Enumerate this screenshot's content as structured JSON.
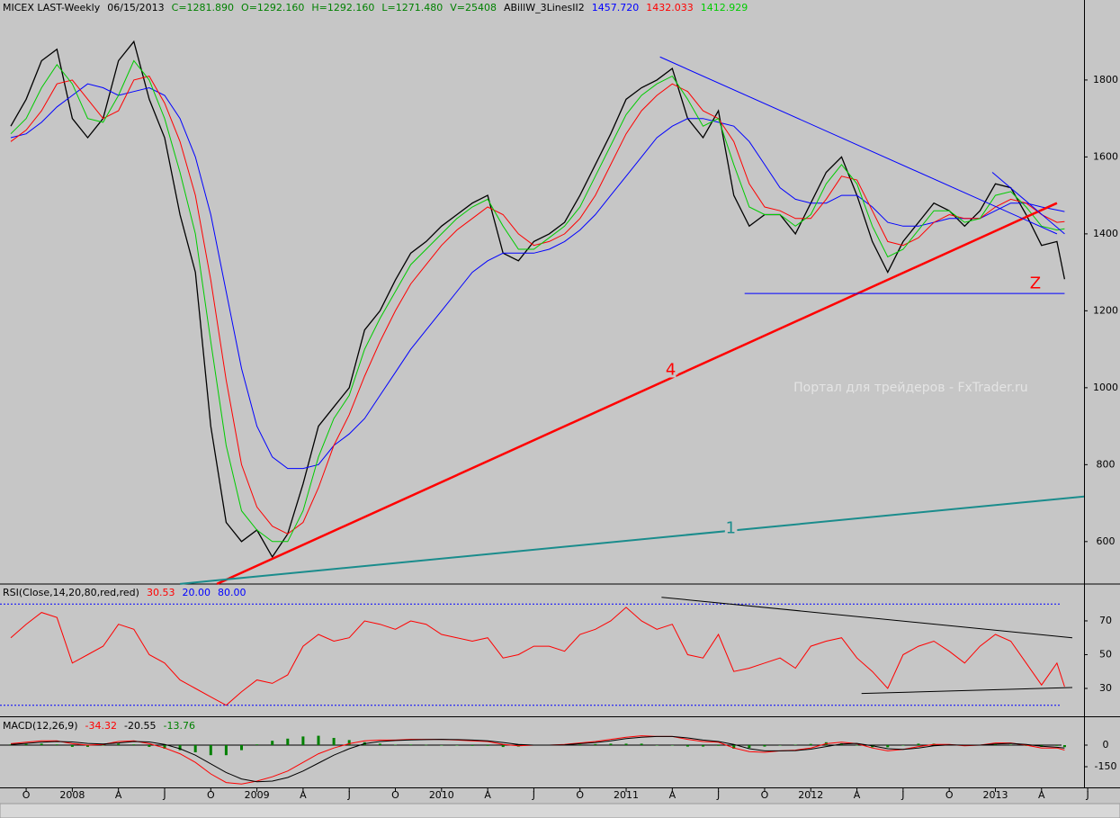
{
  "chart_data": [
    {
      "type": "line",
      "title": "MICEX LAST-Weekly",
      "header": [
        {
          "text": "06/15/2013",
          "color": "#000000"
        },
        {
          "text": "C=1281.890",
          "color": "#008000"
        },
        {
          "text": "O=1292.160",
          "color": "#008000"
        },
        {
          "text": "H=1292.160",
          "color": "#008000"
        },
        {
          "text": "L=1271.480",
          "color": "#008000"
        },
        {
          "text": "V=25408",
          "color": "#008000"
        },
        {
          "text": "ABillW_3LinesII2",
          "color": "#000000"
        },
        {
          "text": "1457.720",
          "color": "#0000ff"
        },
        {
          "text": "1432.033",
          "color": "#ff0000"
        },
        {
          "text": "1412.929",
          "color": "#00cc00"
        }
      ],
      "x": [
        -4,
        -3,
        -2,
        -1,
        0,
        1,
        2,
        3,
        4,
        5,
        6,
        7,
        8,
        9,
        10,
        11,
        12,
        13,
        14,
        15,
        16,
        17,
        18,
        19,
        20,
        21,
        22,
        23,
        24,
        25,
        26,
        27,
        28,
        29,
        30,
        31,
        32,
        33,
        34,
        35,
        36,
        37,
        38,
        39,
        40,
        41,
        42,
        43,
        44,
        45,
        46,
        47,
        48,
        49,
        50,
        51,
        52,
        53,
        54,
        55,
        56,
        57,
        58,
        59,
        60,
        61,
        62,
        63,
        64,
        64.5
      ],
      "series": [
        {
          "color": "#000000",
          "width": 1.3,
          "values": [
            1680,
            1750,
            1850,
            1880,
            1700,
            1650,
            1700,
            1850,
            1900,
            1750,
            1650,
            1450,
            1300,
            900,
            650,
            600,
            630,
            560,
            620,
            750,
            900,
            950,
            1000,
            1150,
            1200,
            1280,
            1350,
            1380,
            1420,
            1450,
            1480,
            1500,
            1350,
            1330,
            1380,
            1400,
            1430,
            1500,
            1580,
            1660,
            1750,
            1780,
            1800,
            1830,
            1700,
            1650,
            1720,
            1500,
            1420,
            1450,
            1450,
            1400,
            1480,
            1560,
            1600,
            1500,
            1380,
            1300,
            1380,
            1430,
            1480,
            1460,
            1420,
            1460,
            1530,
            1520,
            1450,
            1370,
            1380,
            1282
          ]
        },
        {
          "color": "#0000ff",
          "width": 1,
          "values": [
            1650,
            1660,
            1690,
            1730,
            1760,
            1790,
            1780,
            1760,
            1770,
            1780,
            1760,
            1700,
            1600,
            1450,
            1250,
            1050,
            900,
            820,
            790,
            790,
            800,
            850,
            880,
            920,
            980,
            1040,
            1100,
            1150,
            1200,
            1250,
            1300,
            1330,
            1350,
            1350,
            1350,
            1360,
            1380,
            1410,
            1450,
            1500,
            1550,
            1600,
            1650,
            1680,
            1700,
            1700,
            1690,
            1680,
            1640,
            1580,
            1520,
            1490,
            1480,
            1480,
            1500,
            1500,
            1470,
            1430,
            1420,
            1420,
            1430,
            1440,
            1440,
            1440,
            1460,
            1480,
            1480,
            1470,
            1462,
            1458
          ]
        },
        {
          "color": "#ff0000",
          "width": 1,
          "values": [
            1640,
            1670,
            1720,
            1790,
            1800,
            1750,
            1700,
            1720,
            1800,
            1810,
            1740,
            1640,
            1500,
            1280,
            1020,
            800,
            690,
            640,
            620,
            650,
            740,
            850,
            930,
            1030,
            1120,
            1200,
            1270,
            1320,
            1370,
            1410,
            1440,
            1470,
            1450,
            1400,
            1370,
            1380,
            1400,
            1440,
            1500,
            1580,
            1660,
            1720,
            1760,
            1790,
            1770,
            1720,
            1700,
            1640,
            1530,
            1470,
            1460,
            1440,
            1440,
            1490,
            1550,
            1540,
            1460,
            1380,
            1370,
            1390,
            1430,
            1450,
            1440,
            1440,
            1470,
            1490,
            1480,
            1450,
            1430,
            1432
          ]
        },
        {
          "color": "#00cc00",
          "width": 1,
          "values": [
            1660,
            1700,
            1780,
            1840,
            1790,
            1700,
            1690,
            1760,
            1850,
            1800,
            1700,
            1560,
            1400,
            1120,
            850,
            680,
            630,
            600,
            600,
            680,
            820,
            920,
            980,
            1100,
            1180,
            1250,
            1320,
            1360,
            1400,
            1440,
            1470,
            1490,
            1420,
            1360,
            1360,
            1390,
            1420,
            1470,
            1550,
            1630,
            1710,
            1760,
            1790,
            1810,
            1750,
            1680,
            1700,
            1580,
            1470,
            1450,
            1450,
            1420,
            1450,
            1530,
            1580,
            1530,
            1420,
            1340,
            1360,
            1410,
            1460,
            1460,
            1430,
            1440,
            1500,
            1510,
            1470,
            1420,
            1410,
            1413
          ]
        }
      ],
      "trendlines": [
        {
          "color": "#ff0000",
          "width": 2.5,
          "x": [
            9.4,
            64.0
          ],
          "values": [
            490,
            1480
          ]
        },
        {
          "color": "#1a8c8c",
          "width": 2,
          "x": [
            7.0,
            66.5
          ],
          "values": [
            490,
            720
          ]
        },
        {
          "color": "#0000ff",
          "width": 1,
          "x": [
            38.2,
            64.0
          ],
          "values": [
            1860,
            1400
          ]
        },
        {
          "color": "#0000ff",
          "width": 1,
          "x": [
            43.7,
            64.5
          ],
          "values": [
            1245,
            1245
          ]
        },
        {
          "color": "#0000ff",
          "width": 1,
          "x": [
            59.8,
            64.5
          ],
          "values": [
            1560,
            1400
          ]
        }
      ],
      "annotations": [
        {
          "text": "4",
          "x": 38.9,
          "y": 1045,
          "color": "#ff0000",
          "size": 18
        },
        {
          "text": "1",
          "x": 42.8,
          "y": 633,
          "color": "#1a8c8c",
          "size": 18
        },
        {
          "text": "Z",
          "x": 62.6,
          "y": 1270,
          "color": "#ff0000",
          "size": 18
        },
        {
          "text": "Портал для трейдеров - FxTrader.ru",
          "x": 54.5,
          "y": 1000,
          "color": "#e4e4e4",
          "size": 14
        }
      ],
      "xlim": [
        -4.7,
        68.1
      ],
      "ylim": [
        492,
        2008
      ],
      "yticks": [
        600,
        800,
        1000,
        1200,
        1400,
        1600,
        1800
      ]
    },
    {
      "type": "line",
      "title": "RSI(Close,14,20,80,red,red)",
      "header": [
        {
          "text": "30.53",
          "color": "#ff0000"
        },
        {
          "text": "20.00",
          "color": "#0000ff"
        },
        {
          "text": "80.00",
          "color": "#0000ff"
        }
      ],
      "x": [
        -4,
        -3,
        -2,
        -1,
        0,
        1,
        2,
        3,
        4,
        5,
        6,
        7,
        8,
        9,
        10,
        11,
        12,
        13,
        14,
        15,
        16,
        17,
        18,
        19,
        20,
        21,
        22,
        23,
        24,
        25,
        26,
        27,
        28,
        29,
        30,
        31,
        32,
        33,
        34,
        35,
        36,
        37,
        38,
        39,
        40,
        41,
        42,
        43,
        44,
        45,
        46,
        47,
        48,
        49,
        50,
        51,
        52,
        53,
        54,
        55,
        56,
        57,
        58,
        59,
        60,
        61,
        62,
        63,
        64,
        64.5
      ],
      "series": [
        {
          "color": "#ff0000",
          "width": 1,
          "values": [
            60,
            68,
            75,
            72,
            45,
            50,
            55,
            68,
            65,
            50,
            45,
            35,
            30,
            25,
            20,
            28,
            35,
            33,
            38,
            55,
            62,
            58,
            60,
            70,
            68,
            65,
            70,
            68,
            62,
            60,
            58,
            60,
            48,
            50,
            55,
            55,
            52,
            62,
            65,
            70,
            78,
            70,
            65,
            68,
            50,
            48,
            62,
            40,
            42,
            45,
            48,
            42,
            55,
            58,
            60,
            48,
            40,
            30,
            50,
            55,
            58,
            52,
            45,
            55,
            62,
            58,
            45,
            32,
            45,
            31
          ]
        }
      ],
      "hlines": [
        {
          "value": 80,
          "color": "#0000ff"
        },
        {
          "value": 20,
          "color": "#0000ff"
        }
      ],
      "trendlines": [
        {
          "color": "#000000",
          "width": 1,
          "x": [
            38.3,
            65.0
          ],
          "values": [
            84,
            60
          ]
        },
        {
          "color": "#000000",
          "width": 1,
          "x": [
            51.3,
            65.0
          ],
          "values": [
            27,
            30.5
          ]
        }
      ],
      "xlim": [
        -4.7,
        68.1
      ],
      "ylim": [
        14,
        91.3
      ],
      "yticks": [
        30,
        50,
        70
      ]
    },
    {
      "type": "line",
      "title": "MACD(12,26,9)",
      "header": [
        {
          "text": "-34.32",
          "color": "#ff0000"
        },
        {
          "text": "-20.55",
          "color": "#000000"
        },
        {
          "text": "-13.76",
          "color": "#008000"
        }
      ],
      "x": [
        -4,
        -3,
        -2,
        -1,
        0,
        1,
        2,
        3,
        4,
        5,
        6,
        7,
        8,
        9,
        10,
        11,
        12,
        13,
        14,
        15,
        16,
        17,
        18,
        19,
        20,
        21,
        22,
        23,
        24,
        25,
        26,
        27,
        28,
        29,
        30,
        31,
        32,
        33,
        34,
        35,
        36,
        37,
        38,
        39,
        40,
        41,
        42,
        43,
        44,
        45,
        46,
        47,
        48,
        49,
        50,
        51,
        52,
        53,
        54,
        55,
        56,
        57,
        58,
        59,
        60,
        61,
        62,
        63,
        64,
        64.5
      ],
      "series": [
        {
          "type": "bar",
          "color": "#008000",
          "values": [
            5,
            8,
            10,
            5,
            -12,
            -12,
            -3,
            10,
            5,
            -12,
            -25,
            -35,
            -50,
            -70,
            -70,
            -35,
            5,
            30,
            45,
            60,
            65,
            50,
            35,
            20,
            10,
            3,
            4,
            2,
            0,
            -3,
            -5,
            -5,
            -13,
            -10,
            0,
            0,
            3,
            5,
            7,
            10,
            10,
            10,
            0,
            0,
            -10,
            -10,
            -5,
            -25,
            -20,
            -10,
            0,
            3,
            8,
            20,
            12,
            -2,
            -15,
            -15,
            0,
            10,
            10,
            3,
            -5,
            0,
            7,
            3,
            -5,
            -12,
            -5,
            -13.76
          ]
        },
        {
          "color": "#ff0000",
          "width": 1,
          "values": [
            10,
            20,
            30,
            30,
            10,
            0,
            5,
            25,
            30,
            10,
            -20,
            -60,
            -120,
            -200,
            -260,
            -270,
            -250,
            -220,
            -180,
            -120,
            -60,
            -20,
            10,
            30,
            35,
            35,
            40,
            40,
            40,
            35,
            30,
            25,
            5,
            -5,
            0,
            0,
            5,
            15,
            25,
            40,
            55,
            65,
            60,
            60,
            40,
            25,
            20,
            -20,
            -45,
            -50,
            -40,
            -35,
            -20,
            10,
            20,
            10,
            -20,
            -40,
            -30,
            -10,
            5,
            5,
            -5,
            0,
            15,
            15,
            0,
            -20,
            -20,
            -34.32
          ]
        },
        {
          "color": "#000000",
          "width": 1,
          "values": [
            5,
            12,
            20,
            25,
            22,
            12,
            8,
            15,
            25,
            22,
            5,
            -25,
            -70,
            -130,
            -190,
            -235,
            -255,
            -250,
            -225,
            -180,
            -125,
            -70,
            -25,
            10,
            25,
            32,
            36,
            38,
            40,
            38,
            35,
            30,
            18,
            5,
            0,
            0,
            2,
            10,
            18,
            30,
            45,
            55,
            60,
            60,
            50,
            35,
            25,
            5,
            -25,
            -40,
            -40,
            -38,
            -28,
            -10,
            8,
            12,
            -5,
            -25,
            -30,
            -20,
            -5,
            2,
            0,
            0,
            8,
            12,
            5,
            -8,
            -15,
            -20.55
          ]
        }
      ],
      "hlines": [
        {
          "value": 0,
          "color": "#000000"
        }
      ],
      "xlim": [
        -4.7,
        68.1
      ],
      "ylim": [
        -293.75,
        187.5
      ],
      "yticks": [
        0,
        -150
      ],
      "xticks": [
        {
          "value": -3,
          "label": "O"
        },
        {
          "value": 0,
          "label": "2008"
        },
        {
          "value": 3,
          "label": "A"
        },
        {
          "value": 6,
          "label": "J"
        },
        {
          "value": 9,
          "label": "O"
        },
        {
          "value": 12,
          "label": "2009"
        },
        {
          "value": 15,
          "label": "A"
        },
        {
          "value": 18,
          "label": "J"
        },
        {
          "value": 21,
          "label": "O"
        },
        {
          "value": 24,
          "label": "2010"
        },
        {
          "value": 27,
          "label": "A"
        },
        {
          "value": 30,
          "label": "J"
        },
        {
          "value": 33,
          "label": "O"
        },
        {
          "value": 36,
          "label": "2011"
        },
        {
          "value": 39,
          "label": "A"
        },
        {
          "value": 42,
          "label": "J"
        },
        {
          "value": 45,
          "label": "O"
        },
        {
          "value": 48,
          "label": "2012"
        },
        {
          "value": 51,
          "label": "A"
        },
        {
          "value": 54,
          "label": "J"
        },
        {
          "value": 57,
          "label": "O"
        },
        {
          "value": 60,
          "label": "2013"
        },
        {
          "value": 63,
          "label": "A"
        },
        {
          "value": 66,
          "label": "J"
        }
      ]
    }
  ]
}
